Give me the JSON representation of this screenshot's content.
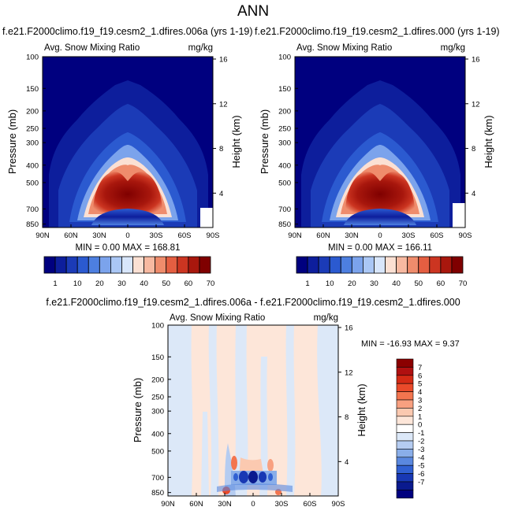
{
  "suptitle": "ANN",
  "panels": [
    {
      "case_title": "f.e21.F2000climo.f19_f19.cesm2_1.dfires.006a (yrs 1-19)",
      "var_label": "Avg. Snow Mixing Ratio",
      "units": "mg/kg",
      "ylabel": "Pressure (mb)",
      "y2label": "Height (km)",
      "stats": "MIN =  0.00  MAX = 168.81",
      "max": 168.81
    },
    {
      "case_title": "f.e21.F2000climo.f19_f19.cesm2_1.dfires.000 (yrs 1-19)",
      "var_label": "Avg. Snow Mixing Ratio",
      "units": "mg/kg",
      "ylabel": "Pressure (mb)",
      "y2label": "Height (km)",
      "stats": "MIN =  0.00  MAX = 166.11",
      "max": 166.11
    }
  ],
  "diff_panel": {
    "case_title": "f.e21.F2000climo.f19_f19.cesm2_1.dfires.006a - f.e21.F2000climo.f19_f19.cesm2_1.dfires.000",
    "var_label": "Avg. Snow Mixing Ratio",
    "units": "mg/kg",
    "ylabel": "Pressure (mb)",
    "y2label": "Height (km)",
    "stats": "MIN = -16.93  MAX =   9.37"
  },
  "chart_data": [
    {
      "type": "heatmap",
      "title": "Avg. Snow Mixing Ratio",
      "units": "mg/kg",
      "xlabel": "",
      "ylabel": "Pressure (mb)",
      "y2label": "Height (km)",
      "x_ticks": [
        "90N",
        "60N",
        "30N",
        "0",
        "30S",
        "60S",
        "90S"
      ],
      "y_ticks": [
        100,
        150,
        200,
        250,
        300,
        400,
        500,
        700,
        850
      ],
      "y2_ticks": [
        4,
        8,
        12,
        16
      ],
      "colorbar_levels": [
        1,
        10,
        20,
        30,
        40,
        50,
        60,
        70
      ],
      "min": 0.0,
      "max": 168.81
    },
    {
      "type": "heatmap",
      "title": "Avg. Snow Mixing Ratio",
      "units": "mg/kg",
      "xlabel": "",
      "ylabel": "Pressure (mb)",
      "y2label": "Height (km)",
      "x_ticks": [
        "90N",
        "60N",
        "30N",
        "0",
        "30S",
        "60S",
        "90S"
      ],
      "y_ticks": [
        100,
        150,
        200,
        250,
        300,
        400,
        500,
        700,
        850
      ],
      "y2_ticks": [
        4,
        8,
        12,
        16
      ],
      "colorbar_levels": [
        1,
        10,
        20,
        30,
        40,
        50,
        60,
        70
      ],
      "min": 0.0,
      "max": 166.11
    },
    {
      "type": "heatmap",
      "title": "Avg. Snow Mixing Ratio",
      "units": "mg/kg",
      "xlabel": "",
      "ylabel": "Pressure (mb)",
      "y2label": "Height (km)",
      "x_ticks": [
        "90N",
        "60N",
        "30N",
        "0",
        "30S",
        "60S",
        "90S"
      ],
      "y_ticks": [
        100,
        150,
        200,
        250,
        300,
        400,
        500,
        700,
        850
      ],
      "y2_ticks": [
        4,
        8,
        12,
        16
      ],
      "colorbar_levels": [
        7,
        6,
        5,
        4,
        3,
        2,
        1,
        0,
        -1,
        -2,
        -3,
        -4,
        -5,
        -6,
        -7
      ],
      "min": -16.93,
      "max": 9.37
    }
  ],
  "colors": {
    "full_cmap": [
      "#00007f",
      "#0d1e9c",
      "#1b3bb7",
      "#2b5ad0",
      "#4d7fe0",
      "#7ba3ec",
      "#aac7f5",
      "#d8e6fb",
      "#fbe0d3",
      "#f7b9a1",
      "#ef8c6c",
      "#e45e41",
      "#cc3521",
      "#a8170d",
      "#7f0000"
    ],
    "diff_cmap": [
      "#8b0000",
      "#b01010",
      "#d42a15",
      "#ea4a2a",
      "#f3754f",
      "#f8a080",
      "#fbc9b0",
      "#fde6d9",
      "#ffffff",
      "#dce8f8",
      "#b5ccf1",
      "#8aaee9",
      "#5a88df",
      "#3060d2",
      "#1838b4",
      "#0a1a8e",
      "#00007f"
    ]
  }
}
